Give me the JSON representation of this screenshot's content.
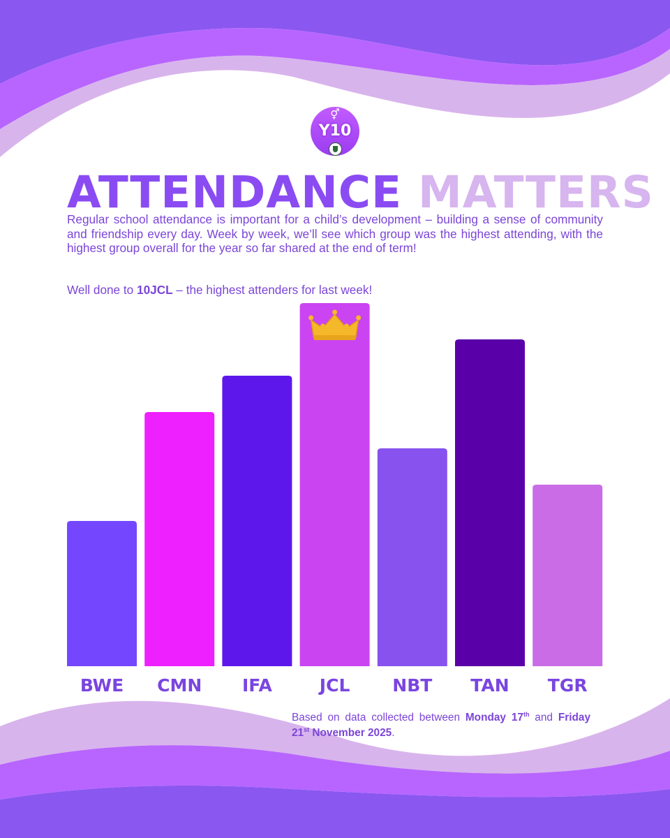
{
  "header": {
    "badge_symbol": "⚥",
    "badge_label": "Y10",
    "title_part1": "ATTENDANCE",
    "title_part2": "MATTERS",
    "intro": "Regular school attendance is important for a child’s development – building a sense of community and friendship every day. Week by week, we’ll see which group was the highest attending, with the highest group overall for the year so far shared at the end of term!",
    "well_done_prefix": "Well done to ",
    "well_done_group": "10JCL",
    "well_done_suffix": " – the highest attenders for last week!"
  },
  "chart_data": {
    "type": "bar",
    "title": "",
    "categories": [
      "BWE",
      "CMN",
      "IFA",
      "JCL",
      "NBT",
      "TAN",
      "TGR"
    ],
    "values": [
      40,
      70,
      80,
      100,
      60,
      90,
      50
    ],
    "colors": [
      "#7447ff",
      "#ef20ff",
      "#5e17eb",
      "#cb44f2",
      "#8752ee",
      "#5a00a8",
      "#c96ce6"
    ],
    "winner": "JCL",
    "winner_icon": "crown-icon",
    "xlabel": "",
    "ylabel": "",
    "ylim": [
      0,
      100
    ],
    "grid": false
  },
  "footer": {
    "text1": "Based on data collected between ",
    "date1_prefix": "Monday 17",
    "date1_suffix": "th",
    "text2": " and ",
    "date2_prefix": "Friday 21",
    "date2_suffix": "st",
    "date2_rest": " November 2025",
    "end": "."
  }
}
